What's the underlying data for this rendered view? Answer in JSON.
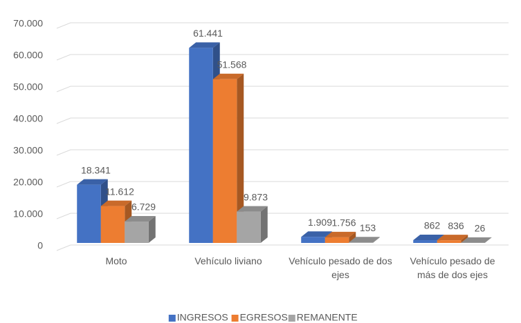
{
  "chart_data": {
    "type": "bar3d",
    "categories": [
      "Moto",
      "Vehículo liviano",
      "Vehículo pesado de dos ejes",
      "Vehículo pesado de más de dos ejes"
    ],
    "series": [
      {
        "name": "INGRESOS",
        "color": "#4472c4",
        "values": [
          18341,
          61441,
          1909,
          862
        ],
        "value_labels": [
          "18.341",
          "61.441",
          "1.909",
          "862"
        ]
      },
      {
        "name": "EGRESOS",
        "color": "#ed7d31",
        "values": [
          11612,
          51568,
          1756,
          836
        ],
        "value_labels": [
          "11.612",
          "51.568",
          "1.756",
          "836"
        ]
      },
      {
        "name": "REMANENTE",
        "color": "#a5a5a5",
        "values": [
          6729,
          9873,
          153,
          26
        ],
        "value_labels": [
          "6.729",
          "9.873",
          "153",
          "26"
        ]
      }
    ],
    "ylim": [
      0,
      70000
    ],
    "yticks": [
      0,
      {
        "value": 10000,
        "label": "10.000"
      },
      {
        "value": 20000,
        "label": "20.000"
      },
      {
        "value": 30000,
        "label": "30.000"
      },
      {
        "value": 40000,
        "label": "40.000"
      },
      {
        "value": 50000,
        "label": "50.000"
      },
      {
        "value": 60000,
        "label": "60.000"
      },
      {
        "value": 70000,
        "label": "70.000"
      }
    ],
    "grid": true,
    "legend": "bottom"
  }
}
